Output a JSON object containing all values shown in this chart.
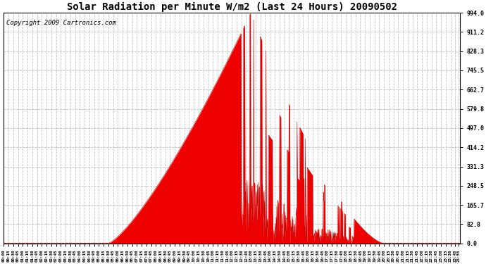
{
  "title": "Solar Radiation per Minute W/m2 (Last 24 Hours) 20090502",
  "copyright": "Copyright 2009 Cartronics.com",
  "y_ticks": [
    0.0,
    82.8,
    165.7,
    248.5,
    331.3,
    414.2,
    497.0,
    579.8,
    662.7,
    745.5,
    828.3,
    911.2,
    994.0
  ],
  "y_max": 994.0,
  "fill_color": "#EE0000",
  "line_color": "#CC0000",
  "grid_color": "#BBBBBB",
  "bg_color": "#FFFFFF",
  "dashed_line_color": "#DD0000",
  "title_fontsize": 10,
  "copyright_fontsize": 6.5,
  "figwidth": 6.9,
  "figheight": 3.75,
  "dpi": 100
}
